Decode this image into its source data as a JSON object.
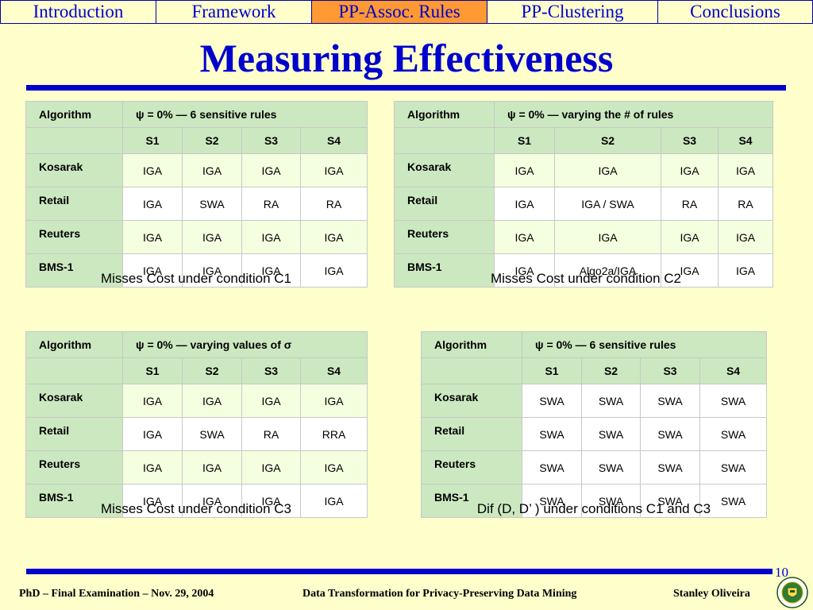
{
  "nav": {
    "tabs": [
      {
        "label": "Introduction",
        "active": false
      },
      {
        "label": "Framework",
        "active": false
      },
      {
        "label": "PP-Assoc. Rules",
        "active": true
      },
      {
        "label": "PP-Clustering",
        "active": false
      },
      {
        "label": "Conclusions",
        "active": false
      }
    ]
  },
  "title": "Measuring Effectiveness",
  "tables": [
    {
      "header_algorithm": "Algorithm",
      "header_condition": "ψ = 0%  —  6 sensitive rules",
      "columns": [
        "S1",
        "S2",
        "S3",
        "S4"
      ],
      "rows": [
        {
          "name": "Kosarak",
          "values": [
            "IGA",
            "IGA",
            "IGA",
            "IGA"
          ]
        },
        {
          "name": "Retail",
          "values": [
            "IGA",
            "SWA",
            "RA",
            "RA"
          ]
        },
        {
          "name": "Reuters",
          "values": [
            "IGA",
            "IGA",
            "IGA",
            "IGA"
          ]
        },
        {
          "name": "BMS-1",
          "values": [
            "IGA",
            "IGA",
            "IGA",
            "IGA"
          ]
        }
      ],
      "caption": "Misses Cost under condition C1"
    },
    {
      "header_algorithm": "Algorithm",
      "header_condition": "ψ = 0%  —  varying the # of rules",
      "columns": [
        "S1",
        "S2",
        "S3",
        "S4"
      ],
      "rows": [
        {
          "name": "Kosarak",
          "values": [
            "IGA",
            "IGA",
            "IGA",
            "IGA"
          ]
        },
        {
          "name": "Retail",
          "values": [
            "IGA",
            "IGA / SWA",
            "RA",
            "RA"
          ]
        },
        {
          "name": "Reuters",
          "values": [
            "IGA",
            "IGA",
            "IGA",
            "IGA"
          ]
        },
        {
          "name": "BMS-1",
          "values": [
            "IGA",
            "Algo2a/IGA",
            "IGA",
            "IGA"
          ]
        }
      ],
      "caption": "Misses Cost under condition C2"
    },
    {
      "header_algorithm": "Algorithm",
      "header_condition": "ψ = 0%  —  varying values of σ",
      "columns": [
        "S1",
        "S2",
        "S3",
        "S4"
      ],
      "rows": [
        {
          "name": "Kosarak",
          "values": [
            "IGA",
            "IGA",
            "IGA",
            "IGA"
          ]
        },
        {
          "name": "Retail",
          "values": [
            "IGA",
            "SWA",
            "RA",
            "RRA"
          ]
        },
        {
          "name": "Reuters",
          "values": [
            "IGA",
            "IGA",
            "IGA",
            "IGA"
          ]
        },
        {
          "name": "BMS-1",
          "values": [
            "IGA",
            "IGA",
            "IGA",
            "IGA"
          ]
        }
      ],
      "caption": "Misses Cost under condition C3"
    },
    {
      "header_algorithm": "Algorithm",
      "header_condition": "ψ = 0%  —  6 sensitive rules",
      "columns": [
        "S1",
        "S2",
        "S3",
        "S4"
      ],
      "rows": [
        {
          "name": "Kosarak",
          "values": [
            "SWA",
            "SWA",
            "SWA",
            "SWA"
          ]
        },
        {
          "name": "Retail",
          "values": [
            "SWA",
            "SWA",
            "SWA",
            "SWA"
          ]
        },
        {
          "name": "Reuters",
          "values": [
            "SWA",
            "SWA",
            "SWA",
            "SWA"
          ]
        },
        {
          "name": "BMS-1",
          "values": [
            "SWA",
            "SWA",
            "SWA",
            "SWA"
          ]
        }
      ],
      "caption": "Dif (D, D’ ) under conditions C1 and C3"
    }
  ],
  "page_number": "10",
  "footer": {
    "left": "PhD – Final Examination – Nov. 29, 2004",
    "center": "Data Transformation for Privacy-Preserving Data Mining",
    "right": "Stanley Oliveira"
  },
  "logo": {
    "name": "university-seal-icon",
    "text": "UNIVERSITY OF ALBERTA"
  },
  "colors": {
    "background": "#ffffcc",
    "accent": "#0000cc",
    "active_tab": "#ff9933",
    "table_header": "#cce8c0",
    "cell_green": "#f4ffe0"
  }
}
